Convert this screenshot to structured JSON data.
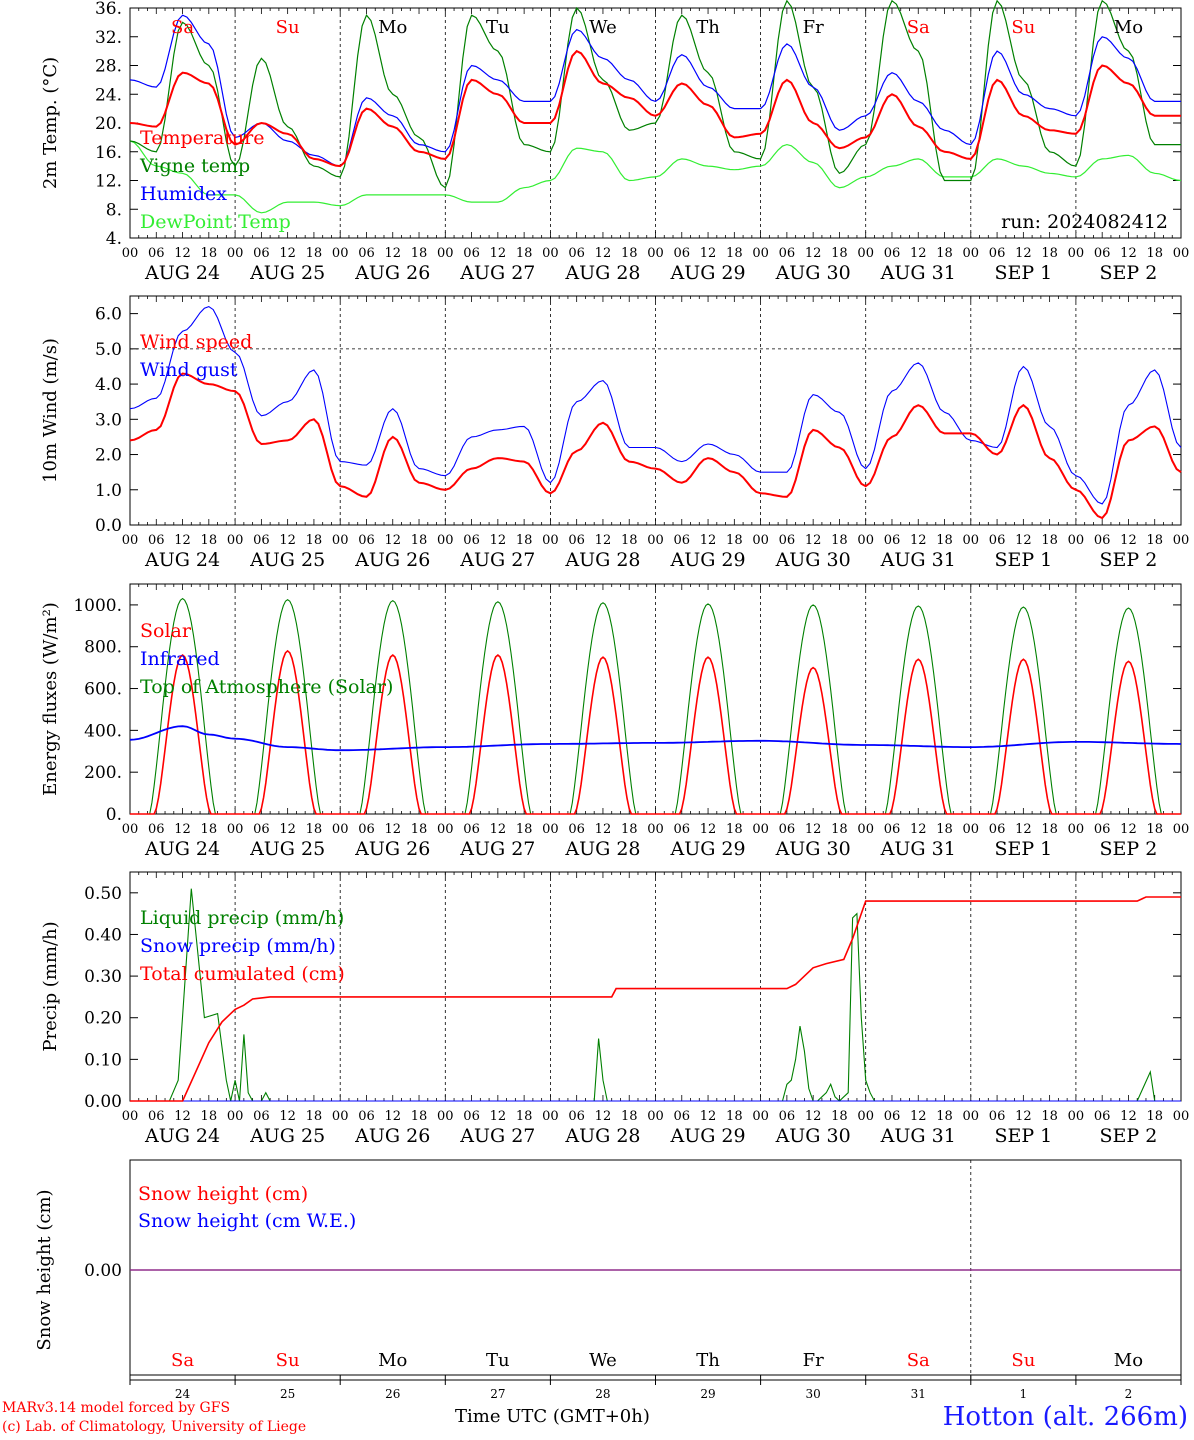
{
  "page": {
    "footer_model": "MARv3.14 model forced by GFS",
    "footer_lab": "(c) Lab. of Climatology, University of Liege",
    "time_label": "Time UTC (GMT+0h)",
    "location": "Hotton (alt. 266m)",
    "run_label": "run: 2024082412"
  },
  "colors": {
    "red": "#ff0000",
    "green": "#008000",
    "blue": "#0000ff",
    "lightgreen": "#33ee33",
    "weekend": "#ff0000",
    "weekday": "#000000"
  },
  "chart_data": [
    {
      "type": "line",
      "ylabel": "2m Temp. (°C)",
      "ylim": [
        4,
        36
      ],
      "yticks": [
        "36.",
        "32.",
        "28.",
        "24.",
        "20.",
        "16.",
        "12.",
        "8.",
        "4."
      ],
      "grid_y": [],
      "weekday_labels": [
        "Sa",
        "Su",
        "Mo",
        "Tu",
        "We",
        "Th",
        "Fr",
        "Sa",
        "Su",
        "Mo"
      ],
      "x": [
        0,
        6,
        12,
        18,
        24,
        30,
        36,
        42,
        48,
        54,
        60,
        66,
        72,
        78,
        84,
        90,
        96,
        102,
        108,
        114,
        120,
        126,
        132,
        138,
        144,
        150,
        156,
        162,
        168,
        174,
        180,
        186,
        192,
        198,
        204,
        210,
        216,
        222,
        228,
        234,
        240
      ],
      "series": [
        {
          "name": "Temperature",
          "color": "red",
          "values": [
            20,
            19.5,
            27,
            25.5,
            17,
            20,
            18.5,
            15,
            14,
            22,
            19.5,
            16,
            15,
            26,
            24,
            20,
            20,
            30,
            25.5,
            23.5,
            21,
            25.5,
            22.5,
            18,
            18.5,
            26,
            20,
            16.5,
            18,
            24,
            19.5,
            16,
            15,
            26,
            21,
            19,
            18.5,
            28,
            25.5,
            21,
            21
          ]
        },
        {
          "name": "Vigne temp",
          "color": "green",
          "values": [
            17.5,
            16,
            34,
            28,
            14,
            29,
            19.5,
            14,
            12.5,
            35,
            24,
            18,
            11,
            35,
            30,
            17,
            16,
            36,
            26,
            19,
            20,
            35,
            27,
            16,
            15,
            37,
            25,
            13,
            17,
            37,
            30,
            12,
            12,
            37,
            26,
            16,
            14,
            37,
            30,
            17,
            17
          ]
        },
        {
          "name": "Humidex",
          "color": "blue",
          "values": [
            26,
            25,
            35,
            31,
            18,
            20,
            17.5,
            15.5,
            14,
            23.5,
            21,
            17,
            16,
            28,
            26,
            23,
            23,
            33,
            29,
            26,
            23,
            29.5,
            25,
            22,
            22,
            31,
            25,
            19,
            21,
            27,
            23,
            19,
            17,
            30,
            24,
            22,
            21,
            32,
            29,
            23,
            23
          ]
        },
        {
          "name": "DewPoint Temp",
          "color": "lightgreen",
          "values": [
            17.5,
            14,
            13,
            10,
            10,
            7.5,
            9,
            9,
            8.5,
            10,
            10,
            10,
            10,
            9,
            9,
            11,
            12,
            16.5,
            16,
            12,
            12.5,
            15,
            14,
            13.5,
            14,
            17,
            14.5,
            11,
            12.5,
            14,
            15,
            12.5,
            12.5,
            15,
            14,
            13,
            12.5,
            15,
            15.5,
            13,
            12
          ]
        }
      ]
    },
    {
      "type": "line",
      "ylabel": "10m Wind (m/s)",
      "ylim": [
        0,
        6.5
      ],
      "yticks": [
        "6.0",
        "5.0",
        "4.0",
        "3.0",
        "2.0",
        "1.0",
        "0.0"
      ],
      "grid_y": [
        5
      ],
      "x": [
        0,
        6,
        12,
        18,
        24,
        30,
        36,
        42,
        48,
        54,
        60,
        66,
        72,
        78,
        84,
        90,
        96,
        102,
        108,
        114,
        120,
        126,
        132,
        138,
        144,
        150,
        156,
        162,
        168,
        174,
        180,
        186,
        192,
        198,
        204,
        210,
        216,
        222,
        228,
        234,
        240
      ],
      "series": [
        {
          "name": "Wind speed",
          "color": "red",
          "values": [
            2.4,
            2.7,
            4.3,
            4.0,
            3.8,
            2.3,
            2.4,
            3.0,
            1.1,
            0.8,
            2.5,
            1.2,
            1.0,
            1.6,
            1.9,
            1.8,
            0.9,
            2.1,
            2.9,
            1.8,
            1.6,
            1.2,
            1.9,
            1.5,
            0.9,
            0.8,
            2.7,
            2.2,
            1.1,
            2.5,
            3.4,
            2.6,
            2.6,
            2.0,
            3.4,
            1.9,
            1.0,
            0.2,
            2.4,
            2.8,
            1.5
          ]
        },
        {
          "name": "Wind gust",
          "color": "blue",
          "values": [
            3.3,
            3.6,
            5.5,
            6.2,
            4.9,
            3.1,
            3.5,
            4.4,
            1.8,
            1.7,
            3.3,
            1.6,
            1.4,
            2.5,
            2.7,
            2.8,
            1.2,
            3.5,
            4.1,
            2.2,
            2.2,
            1.8,
            2.3,
            2.0,
            1.5,
            1.5,
            3.7,
            3.2,
            1.6,
            3.8,
            4.6,
            3.2,
            2.4,
            2.2,
            4.5,
            2.8,
            1.4,
            0.6,
            3.4,
            4.4,
            2.2
          ]
        }
      ]
    },
    {
      "type": "line",
      "ylabel": "Energy fluxes (W/m²)",
      "ylim": [
        0,
        1100
      ],
      "yticks": [
        "1000.",
        "800.",
        "600.",
        "400.",
        "200.",
        "0."
      ],
      "grid_y": [],
      "daily_peaks": {
        "Solar": [
          760,
          780,
          760,
          760,
          750,
          750,
          700,
          740,
          740,
          730
        ],
        "Top of Atmosphere (Solar)": [
          1030,
          1025,
          1020,
          1015,
          1010,
          1005,
          1000,
          995,
          990,
          985
        ]
      },
      "series": [
        {
          "name": "Solar",
          "color": "red"
        },
        {
          "name": "Infrared",
          "color": "blue",
          "x": [
            0,
            12,
            18,
            24,
            36,
            48,
            72,
            96,
            120,
            144,
            168,
            192,
            216,
            240
          ],
          "values": [
            355,
            420,
            380,
            360,
            320,
            305,
            320,
            335,
            340,
            350,
            330,
            320,
            345,
            335
          ]
        },
        {
          "name": "Top of Atmosphere (Solar)",
          "color": "green"
        }
      ]
    },
    {
      "type": "line",
      "ylabel": "Precip (mm/h)",
      "ylim": [
        0,
        0.55
      ],
      "yticks": [
        "0.50",
        "0.40",
        "0.30",
        "0.20",
        "0.10",
        "0.00"
      ],
      "grid_y": [],
      "series": [
        {
          "name": "Liquid precip (mm/h)",
          "color": "green",
          "x": [
            0,
            9,
            11,
            14,
            17,
            20,
            22,
            23,
            24,
            25,
            26,
            27,
            28,
            30,
            31,
            32,
            33,
            34,
            106,
            107,
            108,
            109,
            110,
            149,
            150,
            151,
            152,
            153,
            154,
            155,
            156,
            157,
            158,
            159,
            160,
            161,
            162,
            163,
            164,
            165,
            166,
            167,
            168,
            169,
            170,
            171,
            230,
            233,
            234,
            236,
            240
          ],
          "values": [
            0,
            0,
            0.05,
            0.51,
            0.2,
            0.21,
            0.05,
            0,
            0.05,
            0,
            0.16,
            0.02,
            0,
            0,
            0.02,
            0,
            0,
            0,
            0,
            0.15,
            0.05,
            0,
            0,
            0,
            0.04,
            0.05,
            0.1,
            0.18,
            0.12,
            0.03,
            0,
            0,
            0.01,
            0.02,
            0.04,
            0.01,
            0,
            0.01,
            0.02,
            0.44,
            0.45,
            0.2,
            0.05,
            0.02,
            0,
            0,
            0,
            0.07,
            0,
            0,
            0
          ]
        },
        {
          "name": "Snow precip (mm/h)",
          "color": "blue",
          "x": [
            0,
            240
          ],
          "values": [
            0,
            0
          ]
        },
        {
          "name": "Total cumulated (cm)",
          "color": "red",
          "x": [
            0,
            12,
            15,
            18,
            21,
            24,
            26,
            28,
            32,
            36,
            48,
            96,
            110,
            111,
            114,
            132,
            150,
            152,
            154,
            156,
            159,
            163,
            165,
            167,
            168,
            180,
            230,
            232,
            240
          ],
          "values": [
            0,
            0,
            0.07,
            0.14,
            0.19,
            0.22,
            0.23,
            0.245,
            0.25,
            0.25,
            0.25,
            0.25,
            0.25,
            0.27,
            0.27,
            0.27,
            0.27,
            0.28,
            0.3,
            0.32,
            0.33,
            0.34,
            0.39,
            0.45,
            0.48,
            0.48,
            0.48,
            0.49,
            0.49
          ]
        }
      ]
    },
    {
      "type": "line",
      "ylabel": "Snow height (cm)",
      "yticks": [
        "0.00"
      ],
      "series": [
        {
          "name": "Snow height (cm)",
          "color": "red",
          "x": [
            0,
            240
          ],
          "values": [
            0,
            0
          ]
        },
        {
          "name": "Snow height (cm W.E.)",
          "color": "blue",
          "x": [
            0,
            240
          ],
          "values": [
            0,
            0
          ]
        }
      ],
      "weekday_labels": [
        "Sa",
        "Su",
        "Mo",
        "Tu",
        "We",
        "Th",
        "Fr",
        "Sa",
        "Su",
        "Mo"
      ],
      "day_numbers": [
        "24",
        "25",
        "26",
        "27",
        "28",
        "29",
        "30",
        "31",
        "1",
        "2"
      ]
    }
  ],
  "xaxis": {
    "hour_ticks": [
      "00",
      "06",
      "12",
      "18"
    ],
    "end_tick": "00",
    "dates": [
      "AUG 24",
      "AUG 25",
      "AUG 26",
      "AUG 27",
      "AUG 28",
      "AUG 29",
      "AUG 30",
      "AUG 31",
      "SEP  1",
      "SEP  2"
    ]
  }
}
